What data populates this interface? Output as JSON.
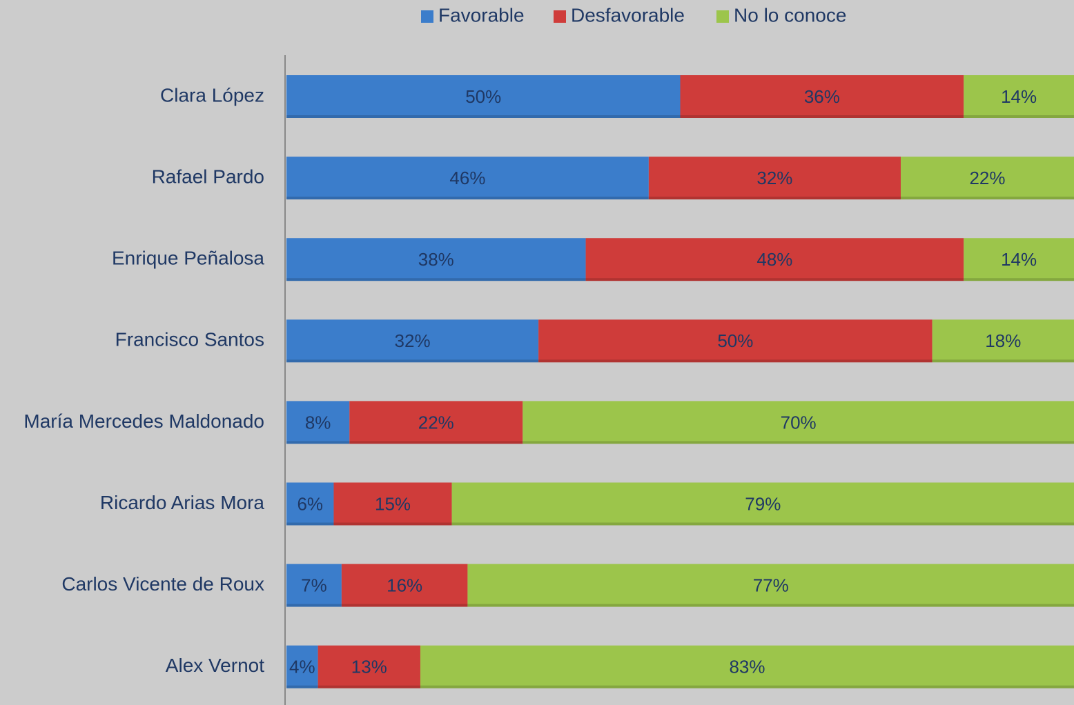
{
  "chart_data": {
    "type": "stacked-bar-horizontal",
    "categories": [
      "Clara López",
      "Rafael Pardo",
      "Enrique Peñalosa",
      "Francisco Santos",
      "María Mercedes Maldonado",
      "Ricardo Arias Mora",
      "Carlos Vicente de Roux",
      "Alex Vernot"
    ],
    "series": [
      {
        "name": "Favorable",
        "color": "#3b7dcb",
        "values": [
          50,
          46,
          38,
          32,
          8,
          6,
          7,
          4
        ],
        "value_labels": [
          "50%",
          "46%",
          "38%",
          "32%",
          "8%",
          "6%",
          "7%",
          "4%"
        ]
      },
      {
        "name": "Desfavorable",
        "color": "#cf3c3a",
        "values": [
          36,
          32,
          48,
          50,
          22,
          15,
          16,
          13
        ],
        "value_labels": [
          "36%",
          "32%",
          "48%",
          "50%",
          "22%",
          "15%",
          "16%",
          "13%"
        ]
      },
      {
        "name": "No lo conoce",
        "color": "#9cc54b",
        "values": [
          14,
          22,
          14,
          18,
          70,
          79,
          77,
          83
        ],
        "value_labels": [
          "14%",
          "22%",
          "14%",
          "18%",
          "70%",
          "79%",
          "77%",
          "83%"
        ]
      }
    ],
    "legend": "top"
  }
}
